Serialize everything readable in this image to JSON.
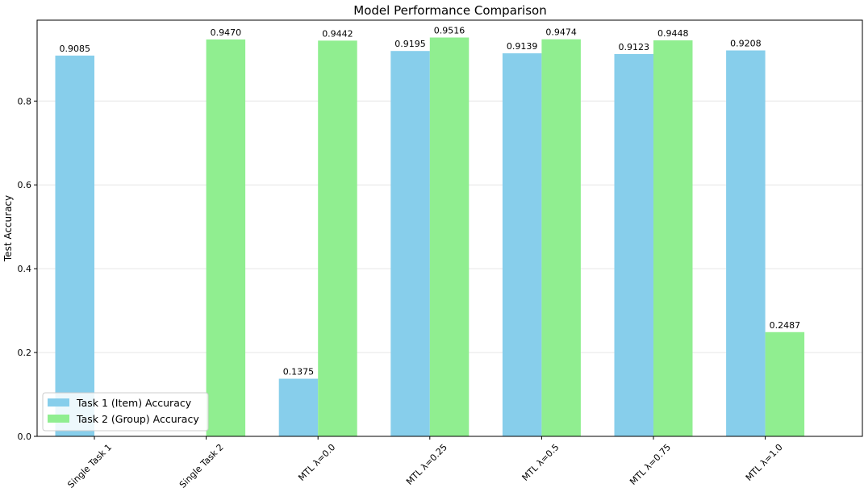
{
  "chart_data": {
    "type": "bar",
    "title": "Model Performance Comparison",
    "xlabel": "",
    "ylabel": "Test Accuracy",
    "ylim": [
      0,
      0.993
    ],
    "yticks": [
      "0.0",
      "0.2",
      "0.4",
      "0.6",
      "0.8"
    ],
    "grid": "horizontal",
    "legend_position": "bottom-left",
    "categories": [
      "Single Task 1",
      "Single Task 2",
      "MTL λ=0.0",
      "MTL λ=0.25",
      "MTL λ=0.5",
      "MTL λ=0.75",
      "MTL λ=1.0"
    ],
    "series": [
      {
        "name": "Task 1 (Item) Accuracy",
        "color": "#87ceeb",
        "values": [
          0.9085,
          null,
          0.1375,
          0.9195,
          0.9139,
          0.9123,
          0.9208
        ],
        "labels": [
          "0.9085",
          null,
          "0.1375",
          "0.9195",
          "0.9139",
          "0.9123",
          "0.9208"
        ]
      },
      {
        "name": "Task 2 (Group) Accuracy",
        "color": "#90ee90",
        "values": [
          null,
          0.947,
          0.9442,
          0.9516,
          0.9474,
          0.9448,
          0.2487
        ],
        "labels": [
          null,
          "0.9470",
          "0.9442",
          "0.9516",
          "0.9474",
          "0.9448",
          "0.2487"
        ]
      }
    ]
  }
}
